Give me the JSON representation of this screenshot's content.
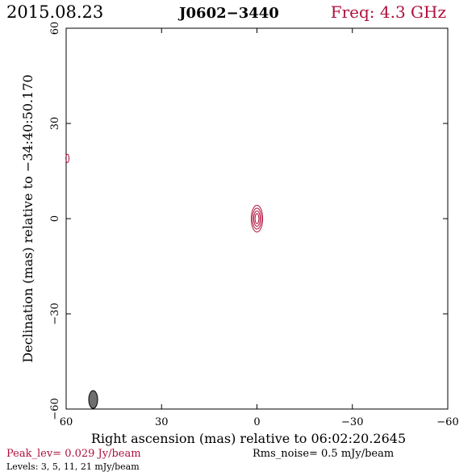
{
  "header": {
    "date": "2015.08.23",
    "source": "J0602−3440",
    "freq": "Freq: 4.3 GHz"
  },
  "footer": {
    "peak": "Peak_lev=  0.029 Jy/beam",
    "rms": "Rms_noise=   0.5 mJy/beam",
    "levels": "Levels:   3,   5,  11,  21 mJy/beam"
  },
  "colors": {
    "accent": "#b0103c",
    "axis": "#000000",
    "beam_fill": "#6e6e6e"
  },
  "chart_data": {
    "type": "contour",
    "xlabel": "Right ascension (mas) relative to 06:02:20.2645",
    "ylabel": "Declination (mas) relative to −34:40:50.170",
    "xlim": [
      60,
      -60
    ],
    "ylim": [
      -60,
      60
    ],
    "x_ticks": [
      60,
      30,
      0,
      -30,
      -60
    ],
    "x_tick_labels": [
      "60",
      "30",
      "0",
      "−30",
      "−60"
    ],
    "y_ticks": [
      -60,
      -30,
      0,
      30,
      60
    ],
    "y_tick_labels": [
      "−60",
      "−30",
      "0",
      "30",
      "60"
    ],
    "contours": [
      {
        "x": 0,
        "y": 0,
        "rx": [
          0.6,
          1.0,
          1.4,
          1.8
        ],
        "ry": [
          1.6,
          2.4,
          3.3,
          4.2
        ]
      },
      {
        "x": 59.6,
        "y": 19,
        "rx": [
          0.5
        ],
        "ry": [
          1.3
        ]
      }
    ],
    "beam": {
      "x": 51.5,
      "y": -57,
      "rx": 1.4,
      "ry": 2.8
    }
  }
}
